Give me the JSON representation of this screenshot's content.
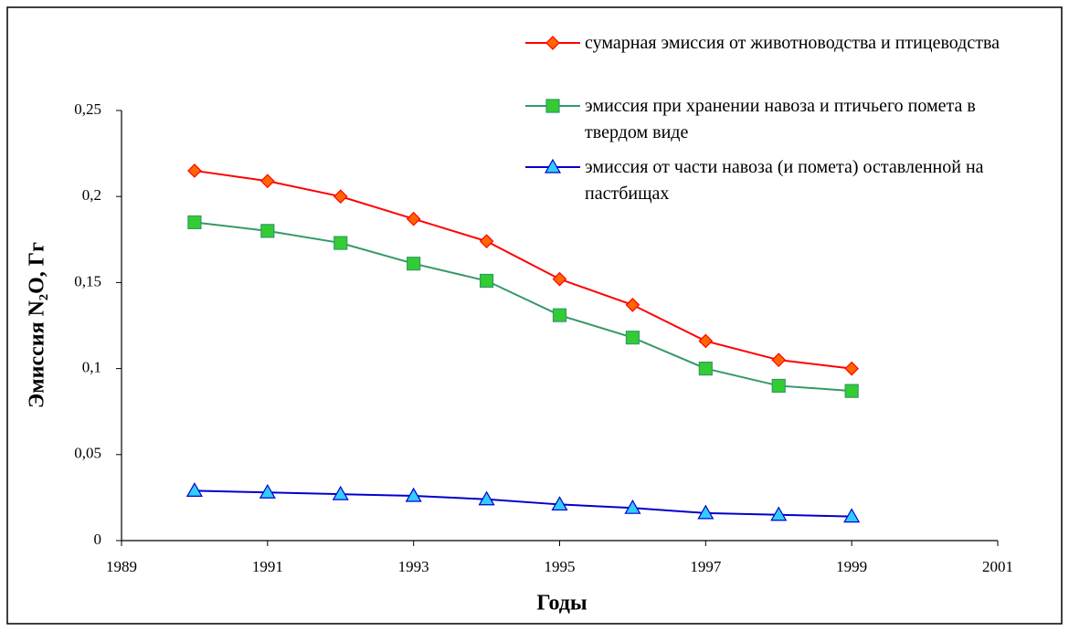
{
  "chart_data": {
    "type": "line",
    "ylabel": "Эмиссия N₂O, Гг",
    "xlabel": "Годы",
    "x": [
      1990,
      1991,
      1992,
      1993,
      1994,
      1995,
      1996,
      1997,
      1998,
      1999
    ],
    "series": [
      {
        "name": "сумарная эмиссия от животноводства и птицеводства",
        "color": "#ff0000",
        "marker": "diamond",
        "marker_color": "#ff6600",
        "values": [
          0.215,
          0.209,
          0.2,
          0.187,
          0.174,
          0.152,
          0.137,
          0.116,
          0.105,
          0.1
        ]
      },
      {
        "name": "эмиссия при хранении навоза и птичьего помета в твердом виде",
        "color": "#339966",
        "marker": "square",
        "marker_color": "#33cc33",
        "values": [
          0.185,
          0.18,
          0.173,
          0.161,
          0.151,
          0.131,
          0.118,
          0.1,
          0.09,
          0.087
        ]
      },
      {
        "name": "эмиссия от части навоза (и помета) оставленной на пастбищах",
        "color": "#0000cc",
        "marker": "triangle",
        "marker_color": "#33ccff",
        "values": [
          0.029,
          0.028,
          0.027,
          0.026,
          0.024,
          0.021,
          0.019,
          0.016,
          0.015,
          0.014
        ]
      }
    ],
    "xlim": [
      1989,
      2001
    ],
    "xticks": [
      1989,
      1991,
      1993,
      1995,
      1997,
      1999,
      2001
    ],
    "ylim": [
      0,
      0.25
    ],
    "yticks": [
      0,
      {
        "value": 0.05,
        "label": "0,05"
      },
      {
        "value": 0.1,
        "label": "0,1"
      },
      {
        "value": 0.15,
        "label": "0,15"
      },
      {
        "value": 0.2,
        "label": "0,2"
      },
      {
        "value": 0.25,
        "label": "0,25"
      }
    ],
    "legend": "upper right"
  }
}
